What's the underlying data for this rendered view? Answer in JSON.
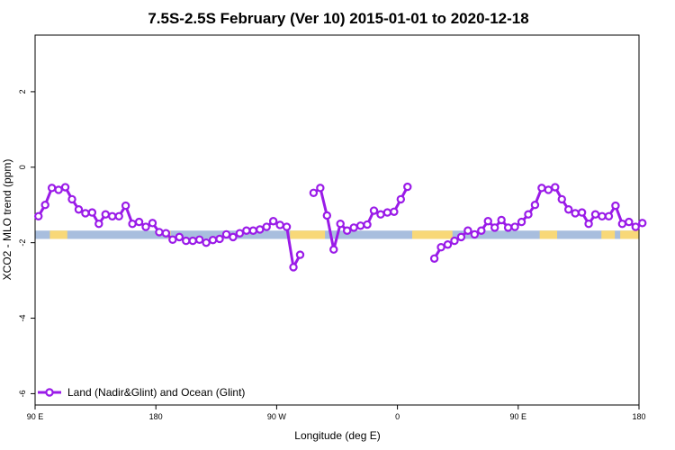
{
  "chart_data": {
    "type": "line",
    "title": "7.5S-2.5S February (Ver 10)   2015-01-01 to 2020-12-18",
    "xlabel": "Longitude (deg E)",
    "ylabel": "XCO2 - MLO trend (ppm)",
    "x_ticks": [
      {
        "value": 90,
        "label": "90 E"
      },
      {
        "value": 180,
        "label": "180"
      },
      {
        "value": 270,
        "label": "90 W"
      },
      {
        "value": 360,
        "label": "0"
      },
      {
        "value": 450,
        "label": "90 E"
      },
      {
        "value": 540,
        "label": "180"
      }
    ],
    "y_ticks": [
      {
        "value": 2,
        "label": "2"
      },
      {
        "value": 0,
        "label": "0"
      },
      {
        "value": -2,
        "label": "-2"
      },
      {
        "value": -4,
        "label": "-4"
      },
      {
        "value": -6,
        "label": "-6"
      }
    ],
    "xlim": [
      90,
      540
    ],
    "ylim": [
      -6.3,
      3.5
    ],
    "grid": false,
    "legend_position": "bottom-left",
    "line_color": "#9a1be8",
    "land_color": "#f8d878",
    "ocean_color": "#a8bede",
    "land_ocean_band": {
      "y_range": [
        -1.9,
        -1.68
      ],
      "land_segments": [
        [
          101,
          114
        ],
        [
          189,
          191
        ],
        [
          280,
          306
        ],
        [
          371,
          401
        ],
        [
          466,
          479
        ],
        [
          512,
          522
        ],
        [
          526,
          543
        ]
      ]
    },
    "series": [
      {
        "name": "Land (Nadir&Glint) and Ocean (Glint)",
        "color": "#9a1be8",
        "points": [
          [
            92.5,
            -1.3
          ],
          [
            97.5,
            -1.0
          ],
          [
            102.5,
            -0.55
          ],
          [
            107.5,
            -0.6
          ],
          [
            112.5,
            -0.53
          ],
          [
            117.5,
            -0.85
          ],
          [
            122.5,
            -1.12
          ],
          [
            127.5,
            -1.22
          ],
          [
            132.5,
            -1.2
          ],
          [
            137.5,
            -1.5
          ],
          [
            142.5,
            -1.25
          ],
          [
            147.5,
            -1.3
          ],
          [
            152.5,
            -1.3
          ],
          [
            157.5,
            -1.02
          ],
          [
            162.5,
            -1.5
          ],
          [
            167.5,
            -1.45
          ],
          [
            172.5,
            -1.58
          ],
          [
            177.5,
            -1.48
          ],
          [
            182.5,
            -1.72
          ],
          [
            187.5,
            -1.75
          ],
          [
            192.5,
            -1.92
          ],
          [
            197.5,
            -1.85
          ],
          [
            202.5,
            -1.95
          ],
          [
            207.5,
            -1.95
          ],
          [
            212.5,
            -1.92
          ],
          [
            217.5,
            -2.0
          ],
          [
            222.5,
            -1.93
          ],
          [
            227.5,
            -1.9
          ],
          [
            232.5,
            -1.78
          ],
          [
            237.5,
            -1.85
          ],
          [
            242.5,
            -1.75
          ],
          [
            247.5,
            -1.68
          ],
          [
            252.5,
            -1.68
          ],
          [
            257.5,
            -1.65
          ],
          [
            262.5,
            -1.58
          ],
          [
            267.5,
            -1.43
          ],
          [
            272.5,
            -1.53
          ],
          [
            277.5,
            -1.58
          ],
          [
            282.5,
            -2.65
          ],
          [
            287.5,
            -2.32
          ],
          null,
          [
            297.5,
            -0.68
          ],
          [
            302.5,
            -0.55
          ],
          [
            307.5,
            -1.28
          ],
          [
            312.5,
            -2.18
          ],
          [
            317.5,
            -1.5
          ],
          [
            322.5,
            -1.68
          ],
          [
            327.5,
            -1.6
          ],
          [
            332.5,
            -1.55
          ],
          [
            337.5,
            -1.52
          ],
          [
            342.5,
            -1.15
          ],
          [
            347.5,
            -1.25
          ],
          [
            352.5,
            -1.2
          ],
          [
            357.5,
            -1.18
          ],
          [
            362.5,
            -0.85
          ],
          [
            367.5,
            -0.52
          ],
          null,
          [
            387.5,
            -2.42
          ],
          [
            392.5,
            -2.12
          ],
          [
            397.5,
            -2.05
          ],
          [
            402.5,
            -1.95
          ],
          [
            407.5,
            -1.85
          ],
          [
            412.5,
            -1.68
          ],
          [
            417.5,
            -1.78
          ],
          [
            422.5,
            -1.68
          ],
          [
            427.5,
            -1.43
          ],
          [
            432.5,
            -1.6
          ],
          [
            437.5,
            -1.4
          ],
          [
            442.5,
            -1.6
          ],
          [
            447.5,
            -1.58
          ],
          [
            452.5,
            -1.45
          ],
          [
            457.5,
            -1.25
          ],
          [
            462.5,
            -1.0
          ],
          [
            467.5,
            -0.55
          ],
          [
            472.5,
            -0.6
          ],
          [
            477.5,
            -0.53
          ],
          [
            482.5,
            -0.85
          ],
          [
            487.5,
            -1.12
          ],
          [
            492.5,
            -1.22
          ],
          [
            497.5,
            -1.2
          ],
          [
            502.5,
            -1.5
          ],
          [
            507.5,
            -1.25
          ],
          [
            512.5,
            -1.3
          ],
          [
            517.5,
            -1.3
          ],
          [
            522.5,
            -1.02
          ],
          [
            527.5,
            -1.5
          ],
          [
            532.5,
            -1.45
          ],
          [
            537.5,
            -1.58
          ],
          [
            542.5,
            -1.48
          ]
        ]
      }
    ]
  }
}
